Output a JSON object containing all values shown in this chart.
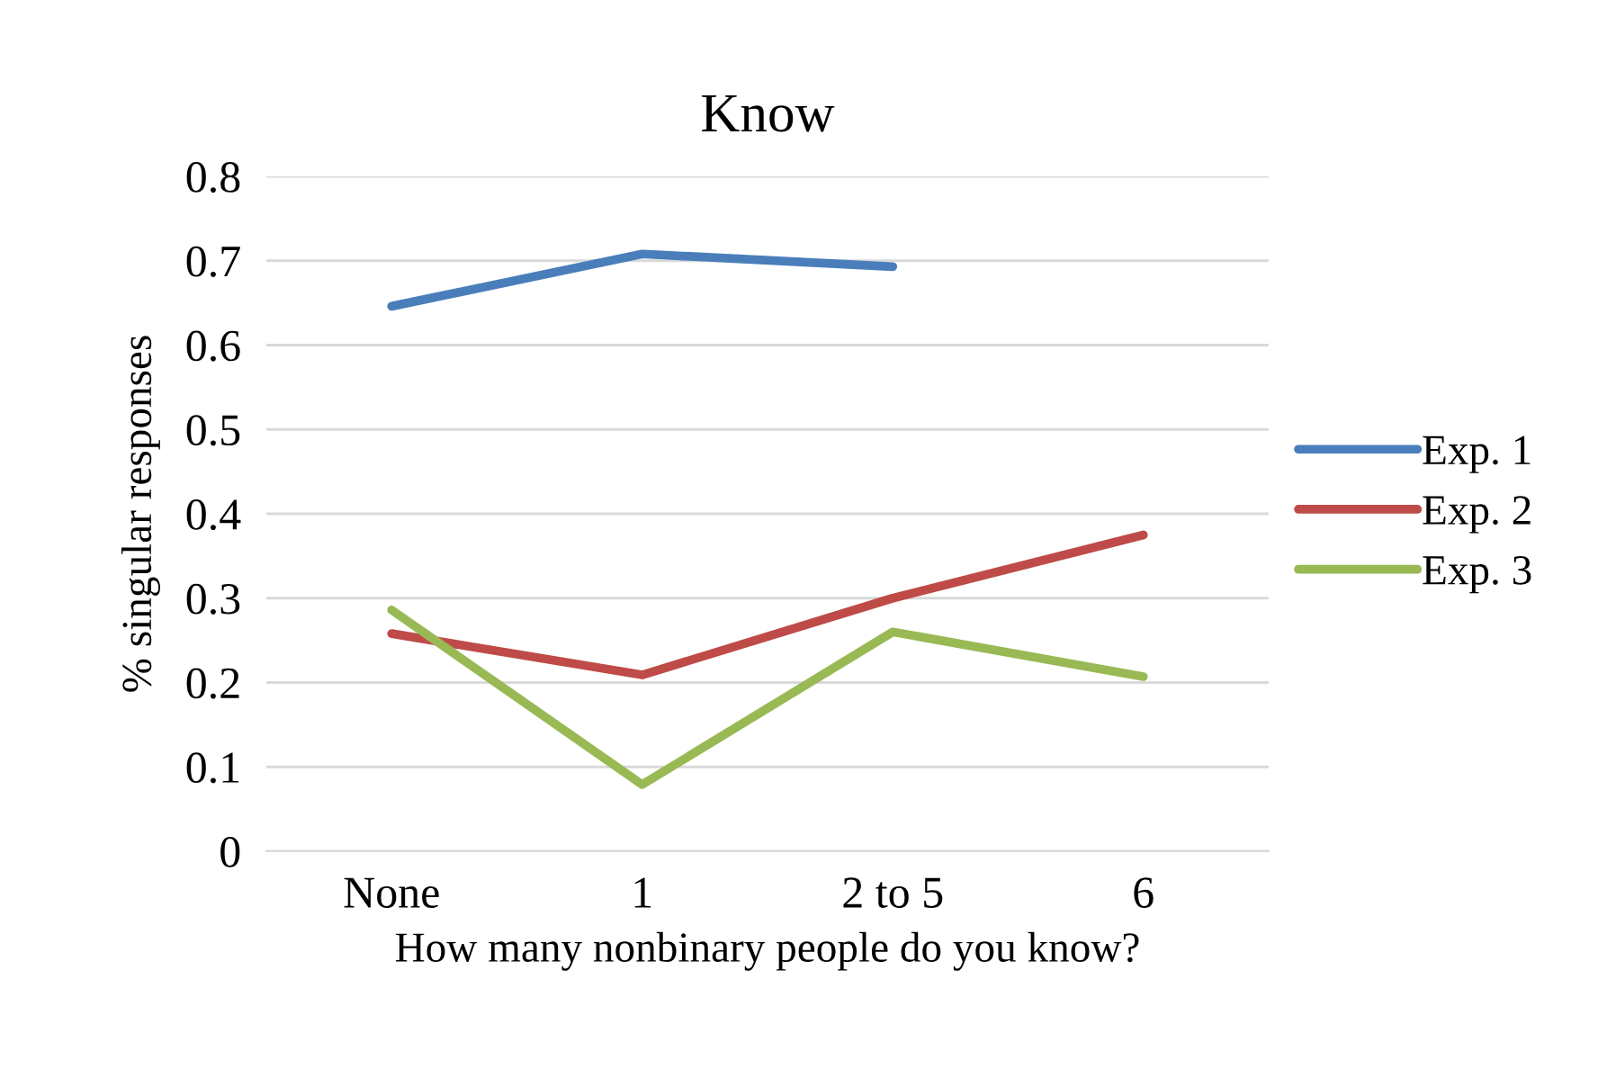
{
  "chart_data": {
    "type": "line",
    "title": "Know",
    "xlabel": "How many nonbinary people do you know?",
    "ylabel": "% singular responses",
    "categories": [
      "None",
      "1",
      "2 to 5",
      "6"
    ],
    "series": [
      {
        "name": "Exp. 1",
        "color": "#4a7ebb",
        "values": [
          0.646,
          0.708,
          0.693,
          null
        ]
      },
      {
        "name": "Exp. 2",
        "color": "#be4b48",
        "values": [
          0.258,
          0.209,
          0.3,
          0.375
        ]
      },
      {
        "name": "Exp. 3",
        "color": "#98b954",
        "values": [
          0.286,
          0.079,
          0.26,
          0.207
        ]
      }
    ],
    "ylim": [
      0,
      0.8
    ],
    "yticks": [
      {
        "value": 0,
        "label": "0"
      },
      0.1,
      0.2,
      0.3,
      0.4,
      0.5,
      0.6,
      0.7,
      0.8
    ],
    "grid": "y",
    "legend": "right",
    "marker": "none",
    "line_style": "solid"
  }
}
